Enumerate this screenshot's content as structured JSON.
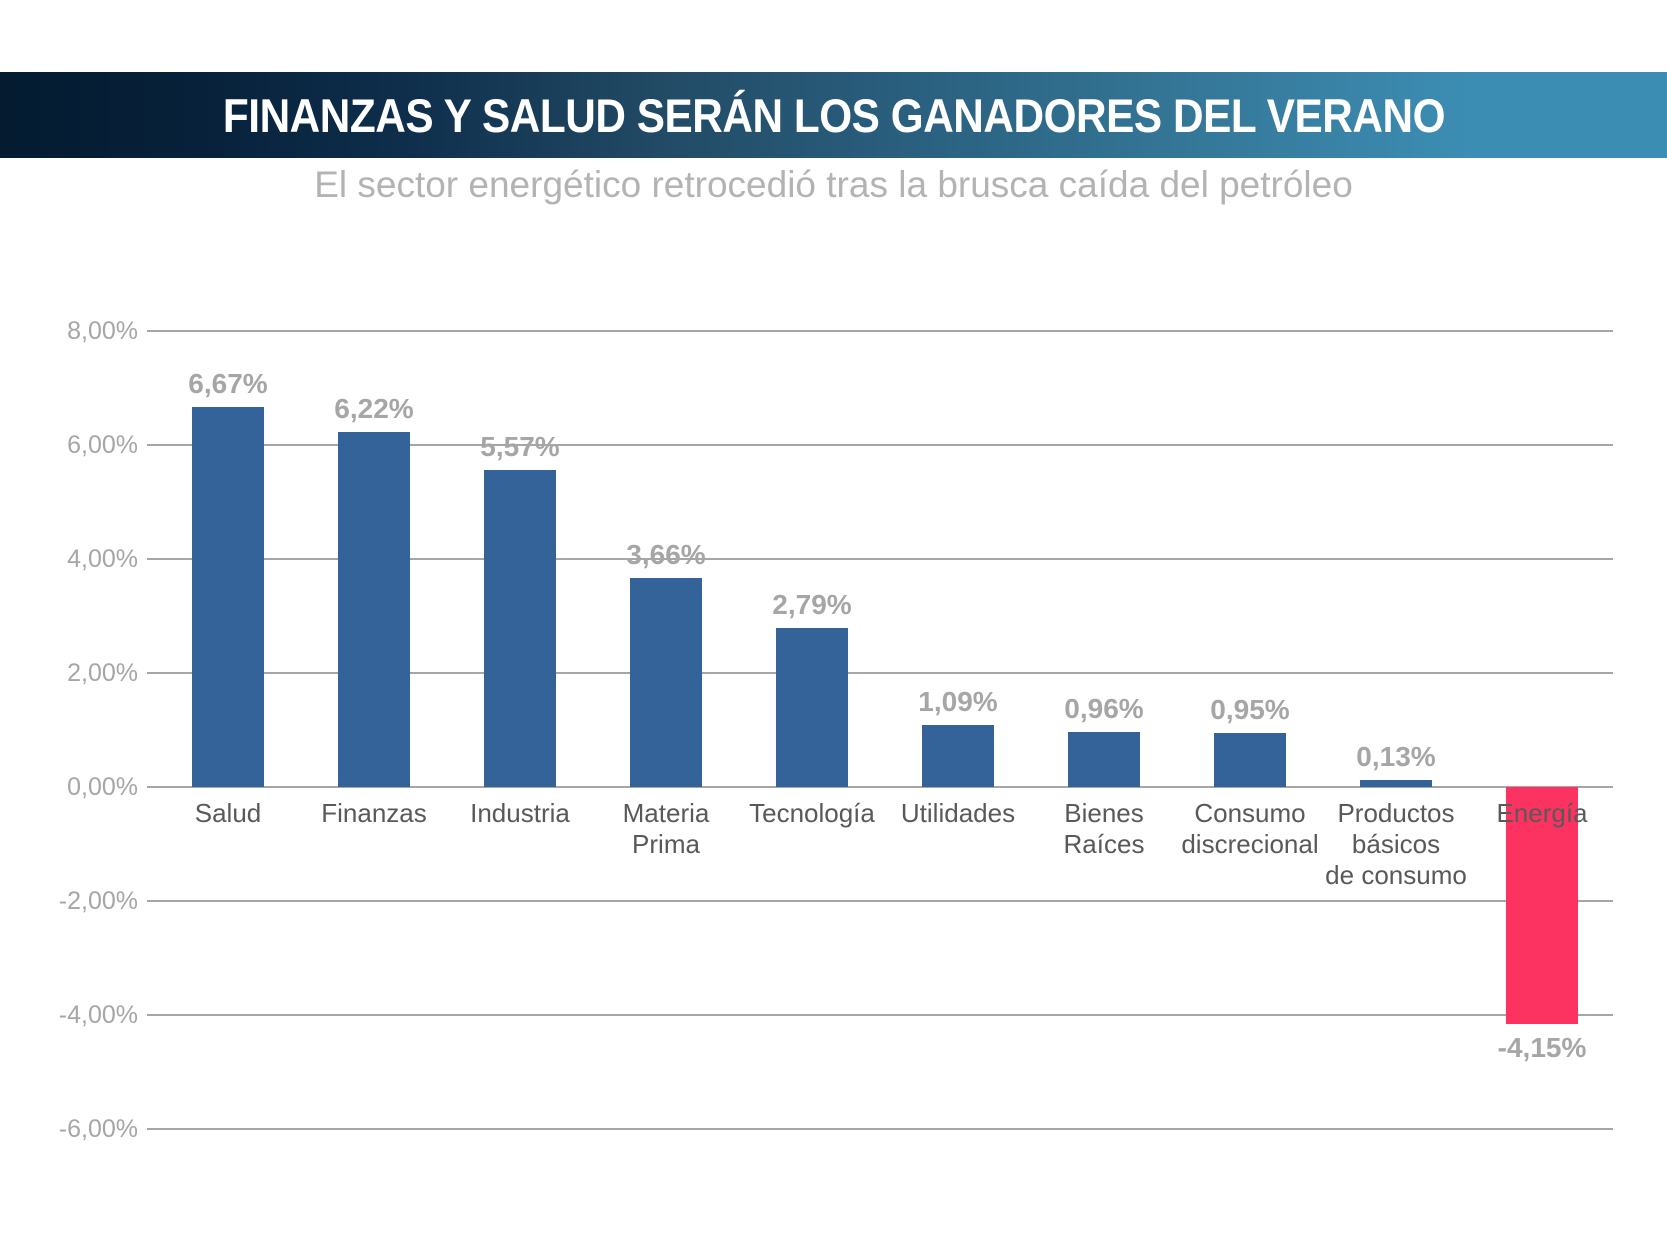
{
  "header": {
    "title": "FINANZAS Y SALUD SERÁN LOS GANADORES DEL VERANO",
    "gradient_left": "#041B30",
    "gradient_right": "#3C8DB3"
  },
  "subtitle": "El sector energético retrocedió tras la brusca caída del petróleo",
  "chart_data": {
    "type": "bar",
    "title": "FINANZAS Y SALUD SERÁN LOS GANADORES DEL VERANO",
    "subtitle": "El sector energético retrocedió tras la brusca caída del petróleo",
    "categories": [
      "Salud",
      "Finanzas",
      "Industria",
      "Materia Prima",
      "Tecnología",
      "Utilidades",
      "Bienes Raíces",
      "Consumo discrecional",
      "Productos básicos de consumo",
      "Energía"
    ],
    "category_lines": [
      [
        "Salud"
      ],
      [
        "Finanzas"
      ],
      [
        "Industria"
      ],
      [
        "Materia",
        "Prima"
      ],
      [
        "Tecnología"
      ],
      [
        "Utilidades"
      ],
      [
        "Bienes",
        "Raíces"
      ],
      [
        "Consumo",
        "discrecional"
      ],
      [
        "Productos",
        "básicos",
        "de consumo"
      ],
      [
        "Energía"
      ]
    ],
    "values": [
      6.67,
      6.22,
      5.57,
      3.66,
      2.79,
      1.09,
      0.96,
      0.95,
      0.13,
      -4.15
    ],
    "value_labels": [
      "6,67%",
      "6,22%",
      "5,57%",
      "3,66%",
      "2,79%",
      "1,09%",
      "0,96%",
      "0,95%",
      "0,13%",
      "-4,15%"
    ],
    "xlabel": "",
    "ylabel": "",
    "ylim": [
      -6,
      8
    ],
    "ytick_interval": 2,
    "yticks": [
      8,
      6,
      4,
      2,
      0,
      -2,
      -4,
      -6
    ],
    "ytick_labels": [
      "8,00%",
      "6,00%",
      "4,00%",
      "2,00%",
      "0,00%",
      "-2,00%",
      "-4,00%",
      "-6,00%"
    ],
    "grid": true,
    "legend": false,
    "colors": {
      "positive_bar": "#336399",
      "negative_bar": "#FC3361",
      "gridline": "#A6A6A6",
      "value_label": "#A6A6A6",
      "category_label": "#595959",
      "axis_label": "#A6A6A6"
    }
  }
}
